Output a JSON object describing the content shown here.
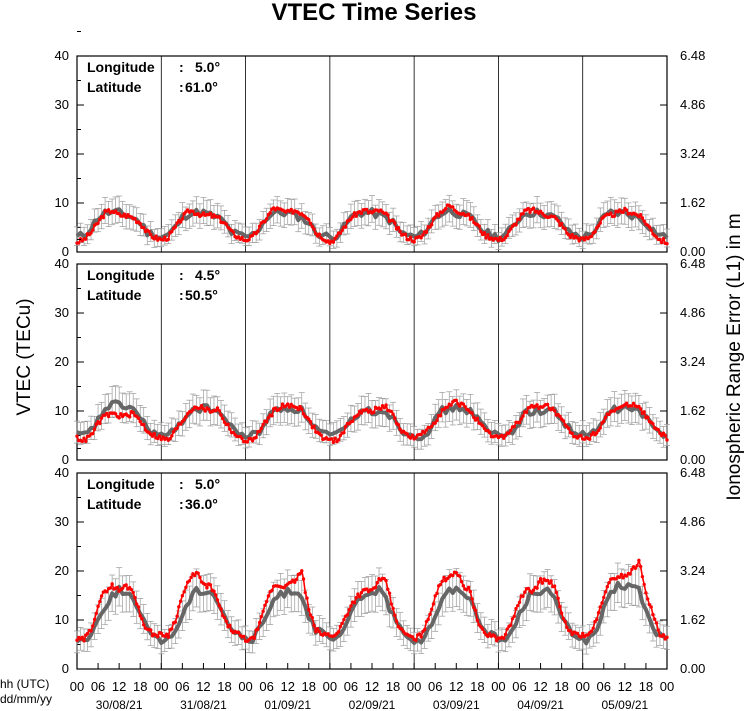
{
  "chart_data": {
    "type": "line",
    "title": "VTEC Time Series",
    "ylabel_left": "VTEC (TECu)",
    "ylabel_right": "Ionospheric Range Error (L1) in m",
    "ylim_left": [
      0,
      40
    ],
    "ylim_right": [
      0.0,
      6.48
    ],
    "yticks_left": [
      "0",
      "10",
      "20",
      "30",
      "40"
    ],
    "yticks_right": [
      "0.00",
      "1.62",
      "3.24",
      "4.86",
      "6.48"
    ],
    "x_caption_hours": "hh (UTC)",
    "x_caption_dates": "dd/mm/yy",
    "hour_labels": [
      "00",
      "06",
      "12",
      "18",
      "00",
      "06",
      "12",
      "18",
      "00",
      "06",
      "12",
      "18",
      "00",
      "06",
      "12",
      "18",
      "00",
      "06",
      "12",
      "18",
      "00",
      "06",
      "12",
      "18",
      "00",
      "06",
      "12",
      "18",
      "00"
    ],
    "date_labels": [
      "30/08/21",
      "31/08/21",
      "01/09/21",
      "02/09/21",
      "03/09/21",
      "04/09/21",
      "05/09/21"
    ],
    "grid": "vertical lines at day boundaries",
    "series_colors": {
      "measured": "#ff0000",
      "median": "#666666",
      "error_bars": "#999999"
    },
    "hourly_profile_note": "values at hours 0,2,...,22 for each day",
    "panels": [
      {
        "longitude_label": "Longitude",
        "longitude_value": "5.0°",
        "latitude_label": "Latitude",
        "latitude_value": "61.0°",
        "measured": [
          [
            2,
            2.5,
            4,
            6,
            8,
            8.5,
            7.5,
            7.5,
            7,
            6,
            4,
            3
          ],
          [
            2.5,
            3,
            5,
            7,
            8.5,
            8,
            7.5,
            7.5,
            7,
            6,
            4,
            3
          ],
          [
            2.5,
            3,
            5,
            7,
            9,
            8.5,
            8,
            8.5,
            8,
            7,
            4,
            3
          ],
          [
            2,
            3,
            5,
            7,
            8,
            8.5,
            8,
            8.5,
            7.5,
            6,
            4,
            3
          ],
          [
            2.5,
            3,
            5,
            7,
            8.5,
            9.5,
            8.5,
            8,
            7,
            5.5,
            3.5,
            3
          ],
          [
            2.5,
            3,
            5,
            7,
            8.5,
            8.5,
            8,
            7.5,
            7,
            5.5,
            3.5,
            3
          ],
          [
            2.5,
            3,
            5,
            7,
            7.5,
            8,
            8.5,
            8,
            7.5,
            6,
            4,
            2.5
          ]
        ],
        "median": [
          [
            3,
            3.5,
            5,
            7,
            8,
            8,
            8,
            7.5,
            7,
            6,
            4,
            3.5
          ],
          [
            3,
            3.5,
            5,
            7,
            8,
            8,
            8,
            7.5,
            7,
            6,
            4,
            3.5
          ],
          [
            3,
            3.5,
            5,
            7,
            8,
            8,
            8,
            7.5,
            7,
            6,
            4,
            3.5
          ],
          [
            3,
            3.5,
            5,
            7,
            8,
            8,
            8,
            7.5,
            7,
            6,
            4,
            3.5
          ],
          [
            3,
            3.5,
            5,
            7,
            8,
            8.5,
            8,
            7.5,
            7,
            5.5,
            4,
            3.5
          ],
          [
            3,
            3.5,
            5,
            7,
            8,
            8,
            8,
            7.5,
            7,
            6,
            4,
            3.5
          ],
          [
            3,
            3.5,
            5,
            7,
            8,
            8,
            8,
            7.5,
            7,
            6,
            4.5,
            3.5
          ]
        ]
      },
      {
        "longitude_label": "Longitude",
        "longitude_value": "4.5°",
        "latitude_label": "Latitude",
        "latitude_value": "50.5°",
        "measured": [
          [
            4.5,
            4,
            5,
            7.5,
            9,
            9.5,
            9,
            9,
            9.5,
            8,
            6,
            5
          ],
          [
            4.5,
            4,
            6,
            8,
            10,
            11,
            10.5,
            10,
            10.5,
            8,
            6,
            4.5
          ],
          [
            4,
            4,
            6,
            8,
            10,
            11,
            11,
            11,
            10.5,
            8,
            6,
            4.5
          ],
          [
            4,
            4,
            6,
            8,
            9.5,
            10,
            10,
            10.5,
            11,
            9,
            6.5,
            5
          ],
          [
            4.5,
            5,
            6.5,
            8,
            10,
            11,
            12,
            11,
            10,
            8,
            6,
            5
          ],
          [
            4.5,
            5,
            6.5,
            8,
            10,
            11,
            11,
            11,
            10,
            8,
            6,
            5
          ],
          [
            4.5,
            4.5,
            6,
            8,
            10,
            10.5,
            11,
            11.5,
            11,
            9,
            7,
            5.5
          ]
        ],
        "median": [
          [
            5,
            5,
            6,
            8,
            10.5,
            11.5,
            11,
            11,
            10.5,
            8.5,
            6.5,
            5.5
          ],
          [
            5,
            5,
            6,
            8,
            10,
            10.5,
            10.5,
            10.5,
            10,
            8.5,
            6.5,
            5.5
          ],
          [
            5,
            5,
            6,
            8,
            10,
            10.5,
            10.5,
            10.5,
            10,
            8.5,
            6.5,
            5.5
          ],
          [
            5,
            5,
            6,
            8,
            9.5,
            10,
            10,
            10,
            10,
            8.5,
            6.5,
            5.5
          ],
          [
            5,
            5,
            6,
            8,
            10,
            10.5,
            10.5,
            10.5,
            10,
            8.5,
            6.5,
            5.5
          ],
          [
            5,
            5,
            6,
            8,
            10,
            10,
            10,
            10,
            10,
            8.5,
            6.5,
            5.5
          ],
          [
            5,
            5,
            6,
            8,
            10,
            10.5,
            10.5,
            10.5,
            10,
            8.5,
            6.5,
            5.5
          ]
        ]
      },
      {
        "longitude_label": "Longitude",
        "longitude_value": "5.0°",
        "latitude_label": "Latitude",
        "latitude_value": "36.0°",
        "measured": [
          [
            6,
            6,
            8,
            13,
            16,
            17,
            16,
            17,
            16,
            11,
            8,
            7
          ],
          [
            7,
            7,
            10,
            15,
            18,
            20,
            17,
            17,
            14,
            10,
            8,
            7
          ],
          [
            6,
            6,
            9,
            14,
            17,
            17,
            17,
            18,
            20,
            12,
            8,
            7
          ],
          [
            7,
            7,
            10,
            13,
            15,
            16,
            16,
            18,
            18,
            12,
            8,
            7
          ],
          [
            6,
            7,
            10,
            15,
            18,
            19,
            20,
            17,
            16,
            10,
            7,
            7
          ],
          [
            6,
            7,
            10,
            14,
            16,
            16,
            18,
            18,
            17,
            11,
            8,
            7
          ],
          [
            7,
            7,
            10,
            15,
            18,
            19,
            19,
            20,
            22,
            16,
            11,
            7
          ]
        ],
        "median": [
          [
            6,
            6,
            7,
            10,
            13,
            15,
            16,
            16,
            14,
            11,
            8,
            7
          ],
          [
            6,
            6,
            8,
            11,
            14,
            16,
            16,
            16,
            14,
            11,
            8,
            7
          ],
          [
            6,
            6,
            8,
            11,
            14,
            15,
            16,
            16,
            15,
            11,
            8,
            7
          ],
          [
            6,
            6,
            8,
            11,
            14,
            15,
            16,
            16,
            14,
            11,
            8,
            7
          ],
          [
            6,
            6,
            8,
            11,
            14,
            16,
            16,
            16,
            14,
            11,
            8,
            7
          ],
          [
            6,
            6,
            8,
            11,
            14,
            16,
            16,
            16,
            14,
            11,
            8,
            7
          ],
          [
            6,
            6,
            8,
            12,
            15,
            17,
            17,
            17,
            16,
            12,
            8,
            7
          ]
        ]
      }
    ]
  }
}
